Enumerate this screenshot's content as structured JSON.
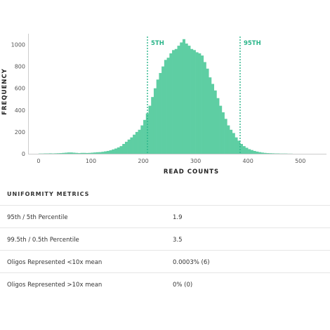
{
  "chart_data": {
    "type": "bar",
    "title": "",
    "xlabel": "READ COUNTS",
    "ylabel": "FREQUENCY",
    "xlim": [
      -20,
      550
    ],
    "ylim": [
      0,
      1100
    ],
    "xticks": [
      "0",
      "100",
      "200",
      "300",
      "400",
      "500"
    ],
    "xtick_values": [
      0,
      100,
      200,
      300,
      400,
      500
    ],
    "yticks": [
      "0",
      "200",
      "400",
      "600",
      "800",
      "1000"
    ],
    "ytick_values": [
      0,
      200,
      400,
      600,
      800,
      1000
    ],
    "bin_width": 5,
    "bins_start": [
      0,
      5,
      10,
      15,
      20,
      25,
      30,
      35,
      40,
      45,
      50,
      55,
      60,
      65,
      70,
      75,
      80,
      85,
      90,
      95,
      100,
      105,
      110,
      115,
      120,
      125,
      130,
      135,
      140,
      145,
      150,
      155,
      160,
      165,
      170,
      175,
      180,
      185,
      190,
      195,
      200,
      205,
      210,
      215,
      220,
      225,
      230,
      235,
      240,
      245,
      250,
      255,
      260,
      265,
      270,
      275,
      280,
      285,
      290,
      295,
      300,
      305,
      310,
      315,
      320,
      325,
      330,
      335,
      340,
      345,
      350,
      355,
      360,
      365,
      370,
      375,
      380,
      385,
      390,
      395,
      400,
      405,
      410,
      415,
      420,
      425,
      430,
      435,
      440,
      445,
      450,
      455,
      460,
      465,
      470,
      475,
      480
    ],
    "values": [
      2,
      2,
      3,
      3,
      4,
      3,
      4,
      5,
      6,
      8,
      10,
      12,
      12,
      10,
      8,
      6,
      8,
      8,
      7,
      8,
      10,
      12,
      14,
      15,
      18,
      22,
      26,
      32,
      40,
      48,
      58,
      70,
      90,
      110,
      130,
      150,
      175,
      200,
      220,
      260,
      310,
      370,
      440,
      520,
      600,
      680,
      740,
      800,
      860,
      880,
      920,
      950,
      960,
      990,
      1020,
      1050,
      1010,
      990,
      960,
      950,
      930,
      920,
      900,
      840,
      780,
      700,
      640,
      580,
      510,
      440,
      380,
      320,
      260,
      220,
      190,
      150,
      120,
      90,
      70,
      55,
      42,
      34,
      26,
      20,
      15,
      11,
      8,
      6,
      5,
      4,
      3,
      3,
      2,
      2,
      2,
      1,
      1
    ],
    "percentiles": [
      {
        "label": "5TH",
        "x": 208
      },
      {
        "label": "95TH",
        "x": 385
      }
    ],
    "bar_color": "#5ecea3",
    "marker_color": "#2bb58a",
    "grid": false
  },
  "metrics": {
    "title": "UNIFORMITY METRICS",
    "rows": [
      {
        "label": "95th / 5th Percentile",
        "value": "1.9"
      },
      {
        "label": "99.5th / 0.5th Percentile",
        "value": "3.5"
      },
      {
        "label": "Oligos Represented <10x mean",
        "value": "0.0003% (6)"
      },
      {
        "label": "Oligos Represented >10x mean",
        "value": "0% (0)"
      }
    ]
  }
}
